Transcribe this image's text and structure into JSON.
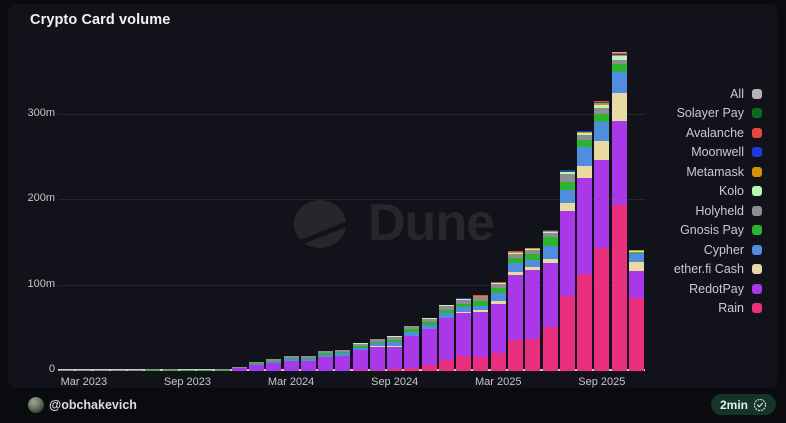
{
  "title": "Crypto Card volume",
  "watermark": "Dune",
  "y_axis": {
    "ticks": [
      {
        "label": "0",
        "value": 0
      },
      {
        "label": "100m",
        "value": 100
      },
      {
        "label": "200m",
        "value": 200
      },
      {
        "label": "300m",
        "value": 300
      }
    ]
  },
  "x_axis": {
    "ticks": [
      {
        "label": "Mar 2023",
        "month_index": 1
      },
      {
        "label": "Sep 2023",
        "month_index": 7
      },
      {
        "label": "Mar 2024",
        "month_index": 13
      },
      {
        "label": "Sep 2024",
        "month_index": 19
      },
      {
        "label": "Mar 2025",
        "month_index": 25
      },
      {
        "label": "Sep 2025",
        "month_index": 31
      }
    ]
  },
  "footer": {
    "author_handle": "@obchakevich",
    "refresh_badge": {
      "label": "2min",
      "icon": "verified-check-icon"
    }
  },
  "chart_data": {
    "type": "bar",
    "stacked": true,
    "title": "Crypto Card volume",
    "unit": "monthly volume, millions USD (m)",
    "ylim": [
      0,
      380
    ],
    "grid": true,
    "legend_position": "right",
    "legend_top_to_bottom": [
      "All",
      "Solayer Pay",
      "Avalanche",
      "Moonwell",
      "Metamask",
      "Kolo",
      "Holyheld",
      "Gnosis Pay",
      "Cypher",
      "ether.fi Cash",
      "RedotPay",
      "Rain"
    ],
    "categories": [
      "Feb 2023",
      "Mar 2023",
      "Apr 2023",
      "May 2023",
      "Jun 2023",
      "Jul 2023",
      "Aug 2023",
      "Sep 2023",
      "Oct 2023",
      "Nov 2023",
      "Dec 2023",
      "Jan 2024",
      "Feb 2024",
      "Mar 2024",
      "Apr 2024",
      "May 2024",
      "Jun 2024",
      "Jul 2024",
      "Aug 2024",
      "Sep 2024",
      "Oct 2024",
      "Nov 2024",
      "Dec 2024",
      "Jan 2025",
      "Feb 2025",
      "Mar 2025",
      "Apr 2025",
      "May 2025",
      "Jun 2025",
      "Jul 2025",
      "Aug 2025",
      "Sep 2025",
      "Oct 2025",
      "Nov 2025"
    ],
    "series": [
      {
        "name": "Rain",
        "color": "#ea2f7e",
        "values": [
          0,
          0,
          0,
          0,
          0,
          0,
          0,
          0,
          0,
          0,
          0,
          0,
          0,
          0,
          0,
          0,
          0,
          0.5,
          1,
          1.5,
          3.4,
          6.6,
          12.5,
          17,
          16,
          21,
          36,
          37,
          50.5,
          87.5,
          113,
          143.5,
          194.5,
          85.5
        ]
      },
      {
        "name": "RedotPay",
        "color": "#a838e8",
        "values": [
          0,
          0,
          0,
          0,
          0,
          0,
          0,
          0,
          0,
          0,
          2.5,
          6.5,
          8.5,
          11.5,
          11,
          16,
          17.5,
          23,
          27,
          26.5,
          36.6,
          41.6,
          48.6,
          50.5,
          52.5,
          57,
          76,
          81,
          75,
          99,
          113,
          103.5,
          98,
          31
        ]
      },
      {
        "name": "ether.fi Cash",
        "color": "#e9d9a2",
        "values": [
          0,
          0,
          0,
          0,
          0,
          0,
          0,
          0,
          0,
          0,
          0,
          0,
          0,
          0,
          0,
          0,
          0,
          0.3,
          0.4,
          0.5,
          0.5,
          1,
          1,
          1.5,
          2,
          3.5,
          3.5,
          3.5,
          4.7,
          9.7,
          13.6,
          22,
          33,
          10.5
        ]
      },
      {
        "name": "Cypher",
        "color": "#4f8ede",
        "values": [
          0,
          0,
          0,
          0,
          0,
          0,
          0,
          0,
          0,
          0,
          0.5,
          1.7,
          2,
          2.3,
          2.3,
          2.7,
          2.7,
          2.7,
          3.3,
          5,
          5,
          4.7,
          5,
          5,
          5.4,
          9,
          10,
          7.8,
          15.5,
          15.6,
          22,
          22.5,
          24,
          9
        ]
      },
      {
        "name": "Gnosis Pay",
        "color": "#2cb431",
        "values": [
          0,
          0,
          0,
          0,
          0,
          0.3,
          0.3,
          0.2,
          0.2,
          0.3,
          0.4,
          0.8,
          0.8,
          1.2,
          1.2,
          1.3,
          1.4,
          2,
          2.2,
          2.7,
          3,
          3,
          3.9,
          3.9,
          5,
          6.6,
          6.5,
          7,
          10.5,
          9,
          9,
          9.7,
          9.3,
          2
        ]
      },
      {
        "name": "Holyheld",
        "color": "#8d8d92",
        "values": [
          0.3,
          0.4,
          0.4,
          0.5,
          0.6,
          1.2,
          1.2,
          1,
          1,
          1.2,
          1,
          1.5,
          1.7,
          2,
          2,
          2.7,
          2.6,
          3,
          3,
          3.3,
          3.5,
          4,
          4.7,
          5,
          4.7,
          4,
          4.7,
          4.7,
          5,
          10,
          6,
          7,
          5.4,
          1.5
        ]
      },
      {
        "name": "Kolo",
        "color": "#b9f6b3",
        "values": [
          0,
          0,
          0,
          0,
          0,
          0,
          0,
          0,
          0,
          0,
          0,
          0,
          0,
          0,
          0,
          0.3,
          0.3,
          0.5,
          0.5,
          0.5,
          0.5,
          0.6,
          0.8,
          0.8,
          1,
          1,
          1,
          1.2,
          1.5,
          1.5,
          2,
          3.5,
          4.3,
          1
        ]
      },
      {
        "name": "Metamask",
        "color": "#d3900a",
        "values": [
          0,
          0,
          0,
          0,
          0,
          0,
          0,
          0,
          0,
          0,
          0,
          0,
          0,
          0,
          0,
          0,
          0,
          0,
          0,
          0,
          0,
          0,
          0.5,
          0.5,
          0.7,
          0.6,
          1,
          1,
          1.2,
          1,
          1.2,
          2,
          1.5,
          0.5
        ]
      },
      {
        "name": "Moonwell",
        "color": "#2138e0",
        "values": [
          0,
          0,
          0,
          0,
          0,
          0,
          0,
          0,
          0,
          0,
          0,
          0,
          0,
          0,
          0,
          0,
          0,
          0,
          0,
          0,
          0,
          0,
          0,
          0.3,
          0.4,
          0.3,
          0.6,
          0.5,
          0.4,
          0.5,
          0.6,
          1,
          1,
          0.3
        ]
      },
      {
        "name": "Avalanche",
        "color": "#e84444",
        "values": [
          0,
          0,
          0,
          0,
          0,
          0,
          0,
          0,
          0,
          0,
          0,
          0,
          0,
          0,
          0,
          0,
          0,
          0,
          0,
          0,
          0,
          0,
          0,
          0,
          0.3,
          0.3,
          0.4,
          0.3,
          0.2,
          0.7,
          0.6,
          0.8,
          1,
          0.2
        ]
      },
      {
        "name": "Solayer Pay",
        "color": "#0e6b1e",
        "values": [
          0,
          0,
          0,
          0,
          0,
          0,
          0,
          0,
          0,
          0,
          0,
          0,
          0,
          0,
          0,
          0,
          0,
          0,
          0,
          0,
          0,
          0,
          0,
          0,
          0,
          0,
          0.3,
          0.2,
          0.2,
          0.3,
          0.3,
          0.5,
          0.5,
          0.2
        ]
      },
      {
        "name": "All",
        "color": "#b2b2b7",
        "values": [
          0,
          0,
          0,
          0,
          0,
          0,
          0,
          0,
          0,
          0,
          0,
          0,
          0,
          0,
          0,
          0,
          0,
          0,
          0,
          0,
          0,
          0,
          0,
          0,
          0,
          0,
          0,
          0,
          0,
          0,
          0,
          0,
          0.5,
          0.2
        ]
      }
    ]
  }
}
